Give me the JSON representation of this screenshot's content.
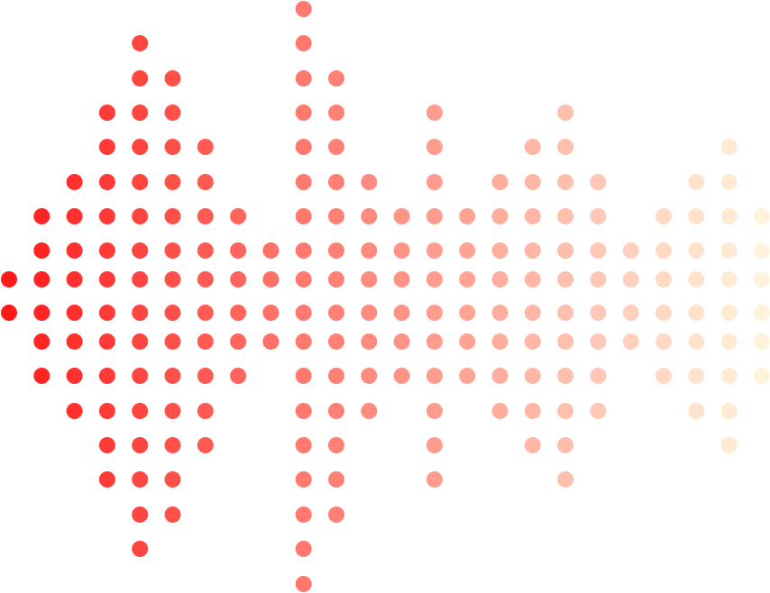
{
  "graphic": {
    "kind": "dot-matrix-sound-wave",
    "column_count": 24,
    "row_count": 18,
    "column_row_inset": [
      8,
      6,
      5,
      3,
      1,
      2,
      4,
      6,
      7,
      0,
      2,
      5,
      6,
      3,
      6,
      5,
      4,
      3,
      5,
      7,
      6,
      5,
      4,
      6
    ],
    "colors": {
      "start": "#ff1a1a",
      "middle": "#ff7066",
      "end": "#fff3dc",
      "background": "#ffffff"
    }
  }
}
